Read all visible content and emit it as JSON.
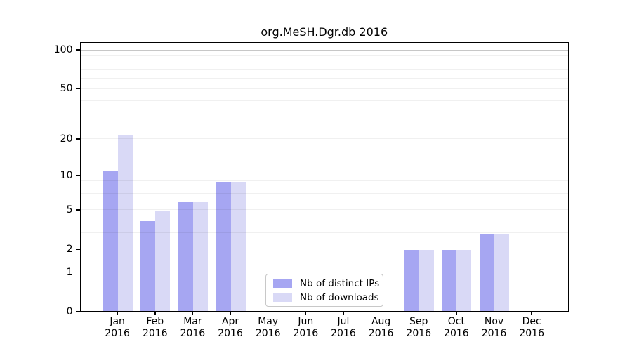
{
  "page": {
    "background": "#ffffff"
  },
  "chart_data": {
    "type": "bar",
    "title": "org.MeSH.Dgr.db 2016",
    "categories": [
      "Jan",
      "Feb",
      "Mar",
      "Apr",
      "May",
      "Jun",
      "Jul",
      "Aug",
      "Sep",
      "Oct",
      "Nov",
      "Dec"
    ],
    "year": "2016",
    "series": [
      {
        "name": "Nb of distinct IPs",
        "color": "#a6a6f2",
        "values": [
          11,
          4,
          6,
          9,
          0,
          0,
          0,
          0,
          2,
          2,
          3,
          0
        ]
      },
      {
        "name": "Nb of downloads",
        "color": "#d9d9f6",
        "values": [
          22,
          5,
          6,
          9,
          0,
          0,
          0,
          0,
          2,
          2,
          3,
          0
        ]
      }
    ],
    "xlabel": "",
    "ylabel": "",
    "y_axis": {
      "scale": "log1p",
      "ylim": [
        0,
        115
      ],
      "tick_values": [
        0,
        1,
        2,
        5,
        10,
        20,
        50,
        100
      ],
      "major_gridlines": [
        1,
        10,
        100
      ],
      "minor_gridlines": [
        2,
        3,
        4,
        5,
        6,
        7,
        8,
        9,
        20,
        30,
        40,
        50,
        60,
        70,
        80,
        90
      ]
    },
    "legend": {
      "position": "bottom-center"
    },
    "frame_color": "#000000",
    "text_color": "#000000"
  }
}
